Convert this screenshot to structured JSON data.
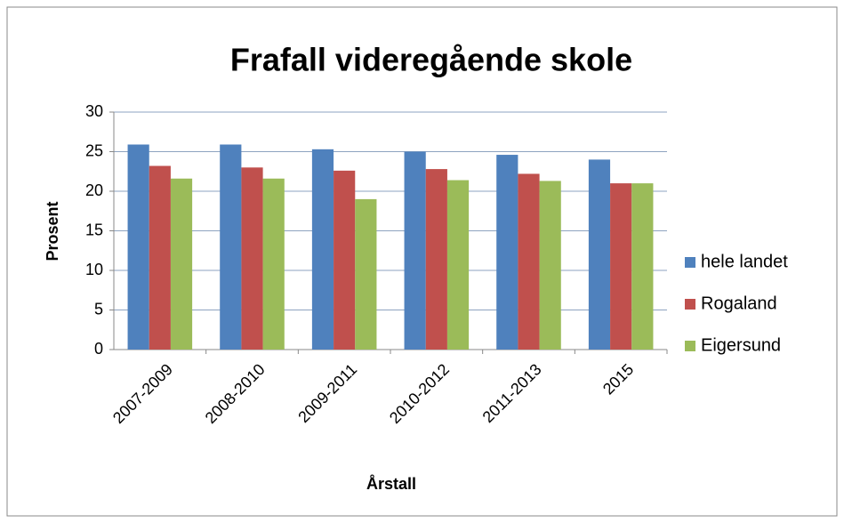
{
  "chart_data": {
    "type": "bar",
    "title": "Frafall videregående skole",
    "x_label": "Årstall",
    "y_label": "Prosent",
    "categories": [
      "2007-2009",
      "2008-2010",
      "2009-2011",
      "2010-2012",
      "2011-2013",
      "2015"
    ],
    "series": [
      {
        "name": "hele landet",
        "color": "#4f81bd",
        "values": [
          25.9,
          25.9,
          25.3,
          25.0,
          24.6,
          24.0
        ]
      },
      {
        "name": "Rogaland",
        "color": "#c0504d",
        "values": [
          23.2,
          23.0,
          22.6,
          22.8,
          22.2,
          21.0
        ]
      },
      {
        "name": "Eigersund",
        "color": "#9bbb59",
        "values": [
          21.6,
          21.6,
          19.0,
          21.4,
          21.3,
          21.0
        ]
      }
    ],
    "ylim": [
      0,
      30
    ],
    "yticks": [
      0,
      5,
      10,
      15,
      20,
      25,
      30
    ],
    "grid": true,
    "legend": "right"
  }
}
